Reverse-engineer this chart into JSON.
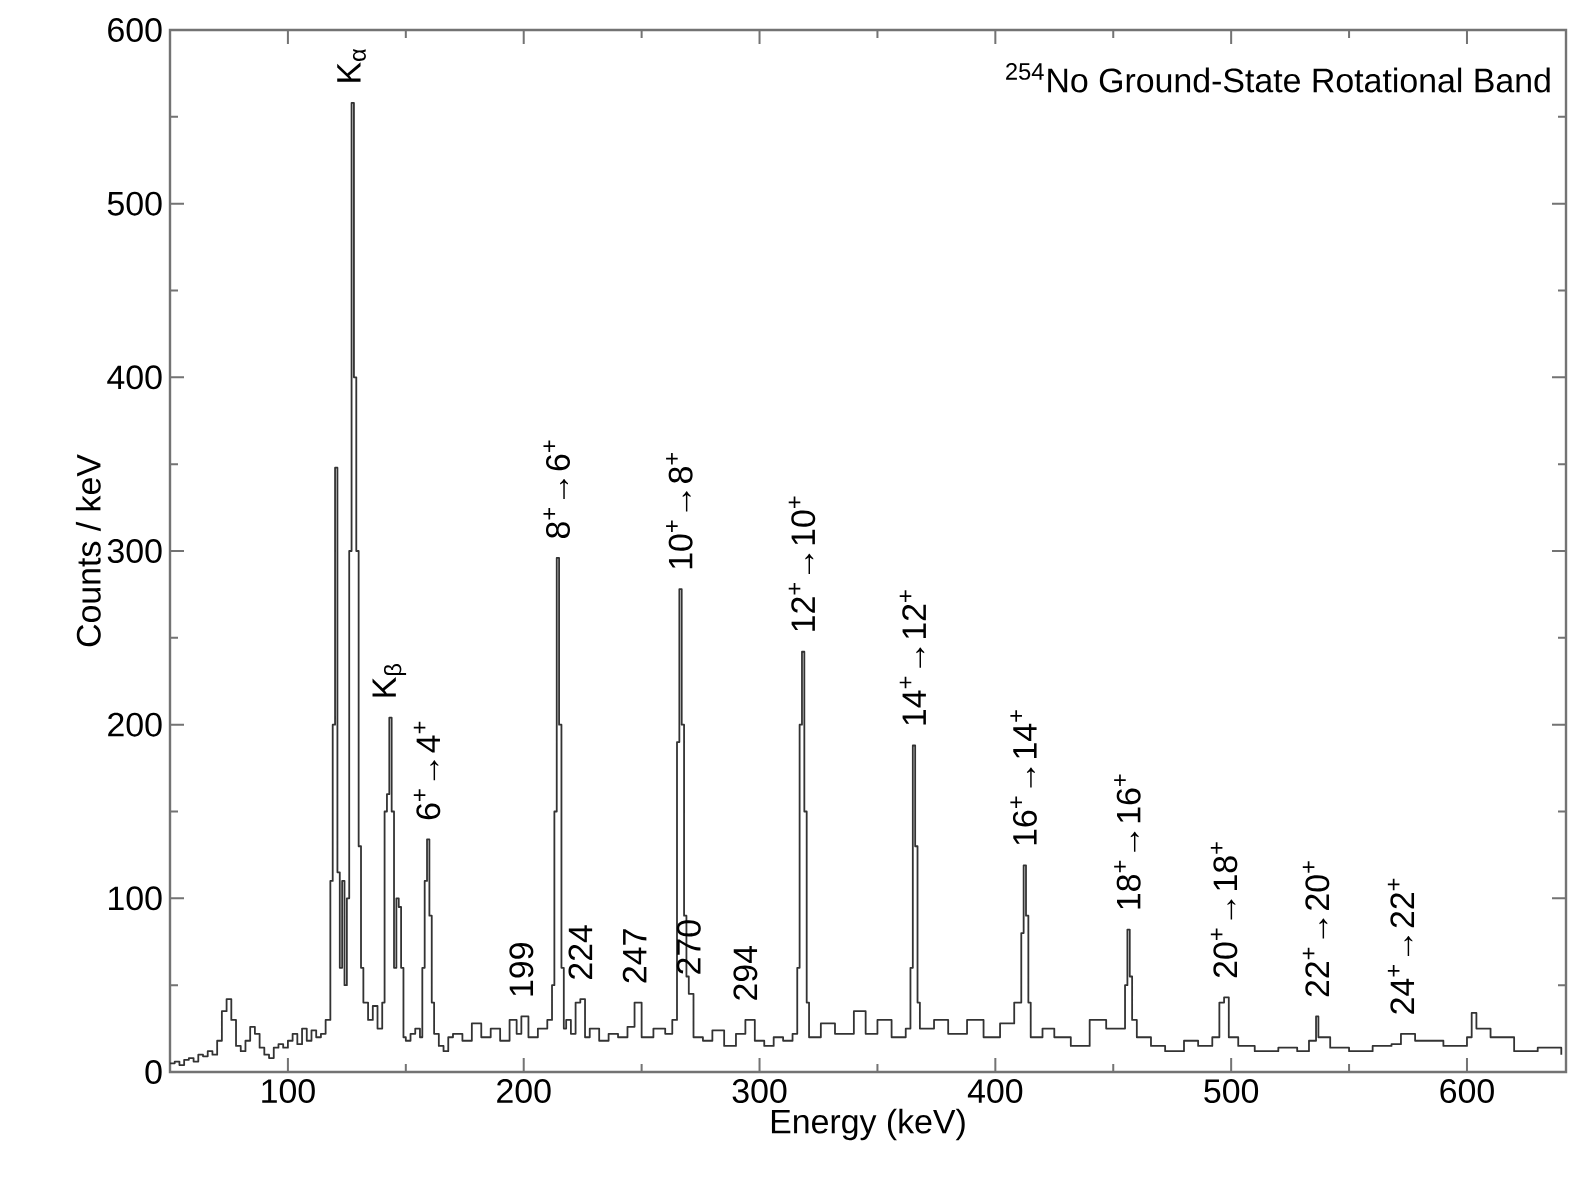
{
  "chart_data": {
    "type": "step",
    "title": "$^{254}$No Ground-State Rotational Band",
    "xlabel": "Energy (keV)",
    "ylabel": "Counts / keV",
    "xlim": [
      50,
      642
    ],
    "ylim": [
      0,
      600
    ],
    "xticks": [
      100,
      {
        "value": 150,
        "label": null
      },
      200,
      {
        "value": 250,
        "label": null
      },
      300,
      {
        "value": 350,
        "label": null
      },
      400,
      {
        "value": 450,
        "label": null
      },
      500,
      {
        "value": 550,
        "label": null
      },
      600
    ],
    "yticks": [
      0,
      {
        "value": 50,
        "label": null
      },
      100,
      {
        "value": 150,
        "label": null
      },
      200,
      {
        "value": 250,
        "label": null
      },
      300,
      {
        "value": 350,
        "label": null
      },
      400,
      {
        "value": 450,
        "label": null
      },
      500,
      {
        "value": 550,
        "label": null
      },
      600
    ],
    "color": "#333333",
    "x": [
      50,
      52,
      54,
      56,
      58,
      60,
      62,
      64,
      66,
      68,
      70,
      72,
      74,
      76,
      78,
      80,
      82,
      84,
      86,
      88,
      90,
      92,
      94,
      96,
      98,
      100,
      102,
      104,
      106,
      108,
      110,
      112,
      114,
      116,
      118,
      119,
      120,
      121,
      122,
      123,
      124,
      125,
      126,
      127,
      128,
      129,
      130,
      131,
      132,
      134,
      136,
      138,
      140,
      141,
      142,
      143,
      144,
      145,
      146,
      147,
      148,
      149,
      150,
      152,
      154,
      156,
      157,
      158,
      159,
      160,
      161,
      162,
      164,
      166,
      168,
      170,
      174,
      178,
      182,
      186,
      190,
      194,
      197,
      199,
      202,
      206,
      210,
      212,
      213,
      214,
      215,
      216,
      217,
      218,
      220,
      222,
      224,
      226,
      228,
      232,
      236,
      240,
      244,
      247,
      250,
      255,
      260,
      263,
      265,
      266,
      267,
      268,
      269,
      270,
      272,
      276,
      280,
      285,
      290,
      294,
      298,
      302,
      306,
      310,
      314,
      316,
      317,
      318,
      319,
      320,
      321,
      326,
      332,
      340,
      345,
      350,
      356,
      362,
      364,
      365,
      366,
      367,
      368,
      374,
      380,
      388,
      395,
      402,
      408,
      410,
      411,
      412,
      413,
      414,
      415,
      420,
      425,
      432,
      440,
      447,
      454,
      455,
      456,
      457,
      458,
      460,
      466,
      472,
      480,
      486,
      492,
      495,
      497,
      499,
      503,
      510,
      520,
      528,
      533,
      536,
      537,
      542,
      550,
      560,
      568,
      572,
      578,
      590,
      600,
      602,
      604,
      610,
      620,
      630,
      640
    ],
    "values": [
      5,
      6,
      4,
      7,
      8,
      6,
      10,
      9,
      12,
      10,
      18,
      35,
      42,
      30,
      15,
      12,
      18,
      26,
      22,
      14,
      10,
      8,
      14,
      16,
      14,
      18,
      22,
      16,
      25,
      18,
      24,
      20,
      22,
      30,
      110,
      200,
      348,
      115,
      60,
      110,
      50,
      100,
      300,
      558,
      400,
      300,
      130,
      60,
      40,
      30,
      38,
      25,
      40,
      150,
      160,
      204,
      150,
      60,
      100,
      95,
      60,
      20,
      18,
      22,
      25,
      20,
      60,
      110,
      134,
      90,
      40,
      22,
      15,
      12,
      20,
      22,
      18,
      28,
      20,
      25,
      18,
      30,
      22,
      32,
      20,
      25,
      30,
      50,
      150,
      296,
      200,
      60,
      25,
      30,
      22,
      40,
      42,
      20,
      25,
      18,
      22,
      20,
      26,
      40,
      20,
      25,
      22,
      30,
      190,
      278,
      200,
      90,
      55,
      45,
      20,
      18,
      24,
      15,
      22,
      30,
      18,
      15,
      20,
      18,
      22,
      60,
      200,
      242,
      150,
      40,
      20,
      28,
      22,
      35,
      22,
      30,
      20,
      25,
      60,
      188,
      130,
      40,
      25,
      30,
      22,
      30,
      20,
      28,
      40,
      40,
      80,
      119,
      90,
      40,
      20,
      25,
      20,
      15,
      30,
      25,
      25,
      50,
      82,
      55,
      30,
      20,
      15,
      12,
      18,
      15,
      20,
      40,
      43,
      20,
      15,
      12,
      14,
      12,
      18,
      32,
      20,
      14,
      12,
      15,
      16,
      22,
      18,
      15,
      20,
      34,
      25,
      20,
      12,
      14,
      10
    ],
    "annotations": [
      {
        "text": "K$_{α}$",
        "x": 127,
        "y": 558
      },
      {
        "text": "K$_{β}$",
        "x": 143,
        "y": 204
      },
      {
        "text": "6$^{+}$→4$^{+}$",
        "x": 159,
        "y": 134
      },
      {
        "text": "8$^{+}$→6$^{+}$",
        "x": 214,
        "y": 296
      },
      {
        "text": "10$^{+}$→8$^{+}$",
        "x": 266,
        "y": 278
      },
      {
        "text": "12$^{+}$→10$^{+}$",
        "x": 318,
        "y": 242
      },
      {
        "text": "14$^{+}$→12$^{+}$",
        "x": 365,
        "y": 188
      },
      {
        "text": "16$^{+}$→14$^{+}$",
        "x": 412,
        "y": 119
      },
      {
        "text": "18$^{+}$→16$^{+}$",
        "x": 456,
        "y": 82
      },
      {
        "text": "20$^{+}$→18$^{+}$",
        "x": 497,
        "y": 43
      },
      {
        "text": "22$^{+}$→20$^{+}$",
        "x": 536,
        "y": 32
      },
      {
        "text": "24$^{+}$→22$^{+}$",
        "x": 572,
        "y": 22
      },
      {
        "text": "199",
        "x": 199,
        "y": 32
      },
      {
        "text": "224",
        "x": 224,
        "y": 42
      },
      {
        "text": "247",
        "x": 247,
        "y": 40
      },
      {
        "text": "270",
        "x": 270,
        "y": 45
      },
      {
        "text": "294",
        "x": 294,
        "y": 30
      }
    ]
  }
}
